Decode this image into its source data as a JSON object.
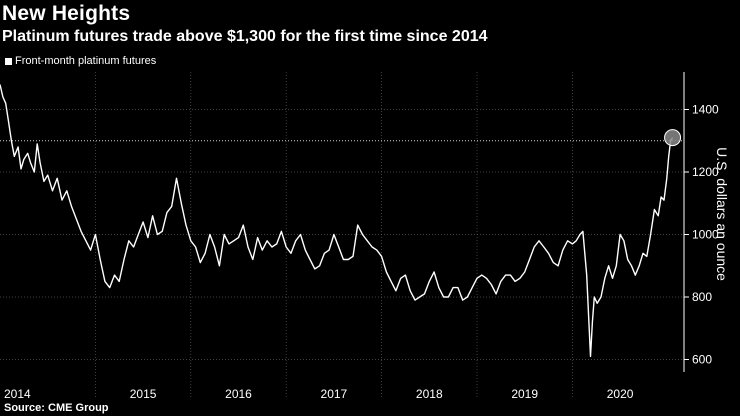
{
  "header": {
    "title": "New Heights",
    "subtitle": "Platinum futures trade above $1,300 for the first time since 2014"
  },
  "legend": {
    "label": "Front-month platinum futures"
  },
  "footer": {
    "source": "Source: CME Group"
  },
  "colors": {
    "background": "#000000",
    "line": "#ffffff",
    "grid": "#5a5a5a",
    "marker_fill": "#8a8a8a"
  },
  "chart_data": {
    "type": "line",
    "title": "New Heights",
    "subtitle": "Platinum futures trade above $1,300 for the first time since 2014",
    "ylabel": "U.S. dollars an ounce",
    "xlabel": "",
    "ylim": [
      560,
      1520
    ],
    "xlim": [
      2014.0,
      2021.17
    ],
    "yticks": [
      600,
      800,
      1000,
      1200,
      1400
    ],
    "year_labels": [
      "2014",
      "2015",
      "2016",
      "2017",
      "2018",
      "2019",
      "2020"
    ],
    "reference_line": {
      "value": 1300,
      "style": "dotted"
    },
    "highlight_point": {
      "x": 2021.05,
      "y": 1310
    },
    "legend_position": "top-left",
    "series": [
      {
        "name": "Front-month platinum futures",
        "x": [
          2014.0,
          2014.03,
          2014.06,
          2014.09,
          2014.12,
          2014.15,
          2014.19,
          2014.22,
          2014.25,
          2014.29,
          2014.32,
          2014.36,
          2014.39,
          2014.42,
          2014.46,
          2014.5,
          2014.55,
          2014.6,
          2014.65,
          2014.7,
          2014.75,
          2014.8,
          2014.85,
          2014.9,
          2014.95,
          2015.0,
          2015.05,
          2015.1,
          2015.15,
          2015.2,
          2015.25,
          2015.3,
          2015.35,
          2015.4,
          2015.45,
          2015.5,
          2015.55,
          2015.6,
          2015.65,
          2015.7,
          2015.75,
          2015.8,
          2015.85,
          2015.9,
          2015.95,
          2016.0,
          2016.05,
          2016.1,
          2016.15,
          2016.2,
          2016.25,
          2016.3,
          2016.35,
          2016.4,
          2016.45,
          2016.5,
          2016.55,
          2016.6,
          2016.65,
          2016.7,
          2016.75,
          2016.8,
          2016.85,
          2016.9,
          2016.95,
          2017.0,
          2017.05,
          2017.1,
          2017.15,
          2017.2,
          2017.25,
          2017.3,
          2017.35,
          2017.4,
          2017.45,
          2017.5,
          2017.55,
          2017.6,
          2017.65,
          2017.7,
          2017.75,
          2017.8,
          2017.85,
          2017.9,
          2017.95,
          2018.0,
          2018.05,
          2018.1,
          2018.15,
          2018.2,
          2018.25,
          2018.3,
          2018.35,
          2018.4,
          2018.45,
          2018.5,
          2018.55,
          2018.6,
          2018.65,
          2018.7,
          2018.75,
          2018.8,
          2018.85,
          2018.9,
          2018.95,
          2019.0,
          2019.05,
          2019.1,
          2019.15,
          2019.2,
          2019.25,
          2019.3,
          2019.35,
          2019.4,
          2019.45,
          2019.5,
          2019.55,
          2019.6,
          2019.65,
          2019.7,
          2019.75,
          2019.8,
          2019.85,
          2019.9,
          2019.95,
          2020.0,
          2020.04,
          2020.08,
          2020.11,
          2020.13,
          2020.15,
          2020.17,
          2020.19,
          2020.21,
          2020.23,
          2020.26,
          2020.3,
          2020.34,
          2020.38,
          2020.42,
          2020.46,
          2020.5,
          2020.54,
          2020.58,
          2020.62,
          2020.66,
          2020.7,
          2020.74,
          2020.78,
          2020.82,
          2020.86,
          2020.9,
          2020.93,
          2020.96,
          2020.99,
          2021.01,
          2021.03,
          2021.05
        ],
        "values": [
          1480,
          1440,
          1420,
          1360,
          1300,
          1250,
          1280,
          1210,
          1240,
          1260,
          1230,
          1200,
          1290,
          1230,
          1170,
          1190,
          1140,
          1180,
          1110,
          1140,
          1090,
          1050,
          1010,
          980,
          950,
          1000,
          920,
          850,
          830,
          870,
          850,
          920,
          980,
          960,
          1000,
          1040,
          990,
          1060,
          1000,
          1010,
          1070,
          1090,
          1180,
          1100,
          1030,
          980,
          960,
          910,
          940,
          1000,
          960,
          900,
          1000,
          970,
          980,
          990,
          1030,
          960,
          920,
          990,
          950,
          980,
          960,
          970,
          1010,
          960,
          940,
          980,
          1000,
          950,
          920,
          890,
          900,
          940,
          950,
          1000,
          960,
          920,
          920,
          930,
          1030,
          1000,
          980,
          960,
          950,
          930,
          880,
          850,
          820,
          860,
          870,
          820,
          790,
          800,
          810,
          850,
          880,
          830,
          800,
          800,
          830,
          830,
          790,
          800,
          830,
          860,
          870,
          860,
          840,
          810,
          850,
          870,
          870,
          850,
          860,
          880,
          920,
          960,
          980,
          960,
          940,
          910,
          900,
          950,
          980,
          970,
          980,
          1000,
          1010,
          940,
          870,
          740,
          610,
          720,
          800,
          780,
          800,
          860,
          900,
          860,
          900,
          1000,
          980,
          920,
          900,
          870,
          900,
          940,
          930,
          1000,
          1080,
          1060,
          1120,
          1110,
          1180,
          1250,
          1300,
          1310
        ]
      }
    ]
  }
}
